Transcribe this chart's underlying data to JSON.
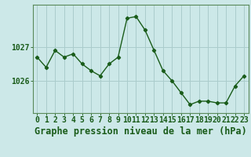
{
  "hours": [
    0,
    1,
    2,
    3,
    4,
    5,
    6,
    7,
    8,
    9,
    10,
    11,
    12,
    13,
    14,
    15,
    16,
    17,
    18,
    19,
    20,
    21,
    22,
    23
  ],
  "pressure": [
    1026.7,
    1026.4,
    1026.9,
    1026.7,
    1026.8,
    1026.5,
    1026.3,
    1026.15,
    1026.5,
    1026.7,
    1027.85,
    1027.9,
    1027.5,
    1026.9,
    1026.3,
    1026.0,
    1025.65,
    1025.3,
    1025.4,
    1025.4,
    1025.35,
    1025.35,
    1025.85,
    1026.15
  ],
  "line_color": "#1a5c1a",
  "marker_color": "#1a5c1a",
  "bg_color": "#cce8e8",
  "grid_color": "#aacccc",
  "axis_color": "#1a5c1a",
  "border_color": "#5a8a5a",
  "xlabel": "Graphe pression niveau de la mer (hPa)",
  "yticks": [
    1026,
    1027
  ],
  "ylim": [
    1025.05,
    1028.25
  ],
  "xlim": [
    -0.5,
    23.5
  ],
  "xlabel_fontsize": 8.5,
  "tick_fontsize": 7.0
}
